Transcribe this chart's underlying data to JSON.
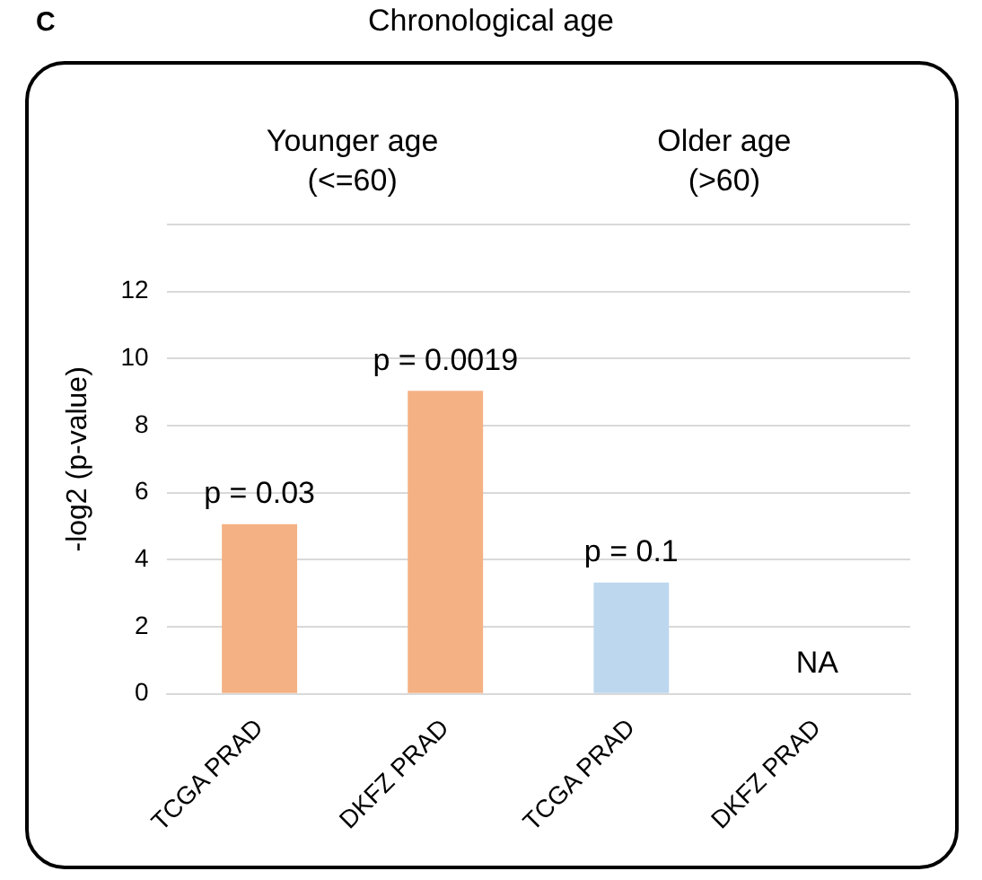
{
  "chart_data": {
    "type": "bar",
    "title": "Chronological age",
    "ylabel": "-log2 (p-value)",
    "categories": [
      "TCGA PRAD",
      "DKFZ PRAD",
      "TCGA PRAD",
      "DKFZ PRAD"
    ],
    "values": [
      5.06,
      9.04,
      3.32,
      0
    ],
    "colors": [
      "#f4b183",
      "#f4b183",
      "#bdd7ee",
      "#8497b0"
    ],
    "ylim": [
      0,
      14
    ],
    "yticks": [
      0,
      2,
      4,
      6,
      8,
      10,
      12,
      {
        "value": 14,
        "label": null
      }
    ],
    "grid": "y",
    "annotations": [
      "C",
      "Younger age\n(<=60)",
      "Older age\n(>60)",
      "p = 0.03",
      "p = 0.0019",
      "p = 0.1",
      "NA"
    ]
  }
}
